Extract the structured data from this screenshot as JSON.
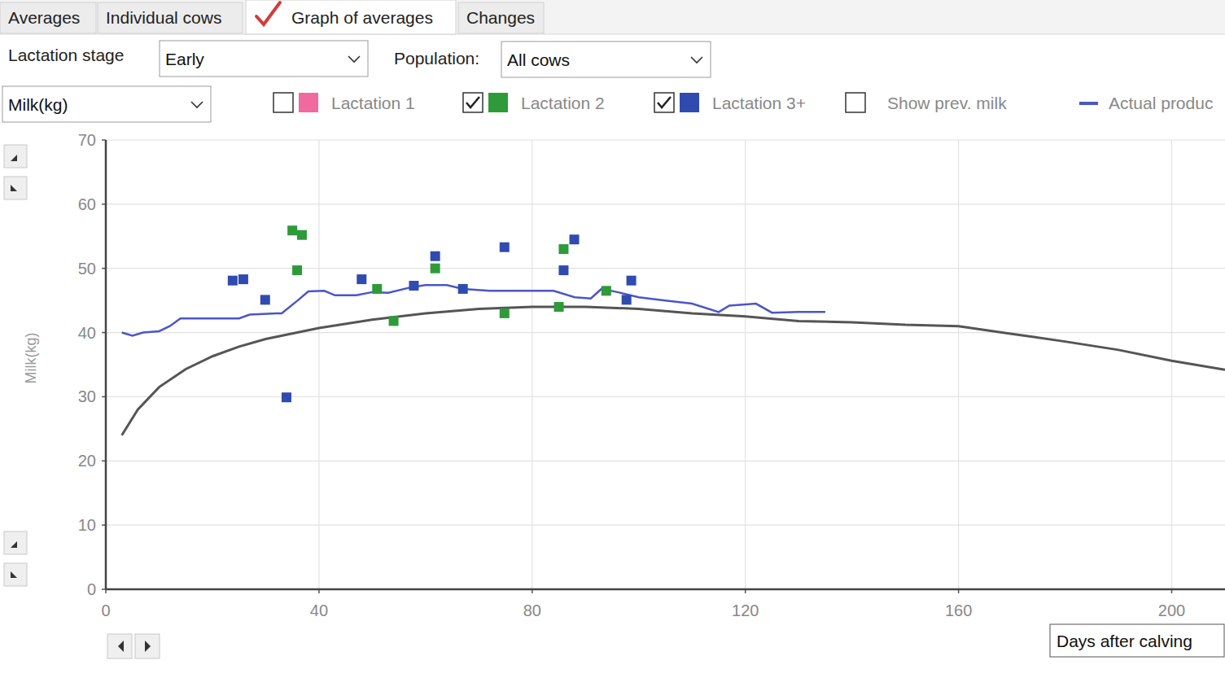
{
  "ui": {
    "tabs": [
      "Averages",
      "Individual cows",
      "Graph of averages",
      "Changes"
    ],
    "selected_tab": 2,
    "lactation_stage_label": "Lactation stage",
    "lactation_stage": "Early",
    "population_label": "Population:",
    "population": "All cows",
    "measure": "Milk(kg)",
    "checked": [
      false,
      true,
      true
    ],
    "show_prev": {
      "label": "Show prev. milk",
      "checked": false
    },
    "x_selector": "Days after calving"
  },
  "chart_data": {
    "type": "scatter",
    "y_label": "Milk(kg)",
    "xlim": [
      0,
      210
    ],
    "ylim": [
      0,
      70
    ],
    "xticks": [
      0,
      40,
      80,
      120,
      160,
      200
    ],
    "yticks": [
      0,
      10,
      20,
      30,
      40,
      50,
      60,
      70
    ],
    "grid": true,
    "legend": "top",
    "series": [
      {
        "name": "Lactation 1",
        "color": "#f06aa0",
        "type": "scatter",
        "marker": "square",
        "x": [],
        "values": []
      },
      {
        "name": "Lactation 2",
        "color": "#2e9a3a",
        "type": "scatter",
        "marker": "square",
        "x": [
          35,
          36.8,
          35.9,
          50.9,
          54,
          61.8,
          74.8,
          85,
          85.9,
          93.9
        ],
        "values": [
          55.9,
          55.2,
          49.7,
          46.8,
          41.8,
          50,
          43,
          44,
          53,
          46.5
        ]
      },
      {
        "name": "Lactation 3+",
        "color": "#2f4bb0",
        "type": "scatter",
        "marker": "square",
        "x": [
          23.8,
          25.8,
          29.9,
          33.9,
          48,
          57.8,
          61.8,
          67,
          74.8,
          85.9,
          87.9,
          97.7,
          98.6
        ],
        "values": [
          48.1,
          48.3,
          45.1,
          29.9,
          48.3,
          47.3,
          51.9,
          46.8,
          53.3,
          49.7,
          54.5,
          45.1,
          48.1
        ]
      },
      {
        "name": "Actual produc",
        "color": "#4a56c8",
        "type": "line",
        "line_style": "solid",
        "x": [
          3,
          5,
          7,
          10,
          12,
          14,
          20,
          25,
          27,
          32,
          33,
          36,
          38,
          41,
          43,
          47,
          50,
          53,
          57,
          60,
          64,
          67,
          72,
          80,
          84,
          88,
          91,
          93,
          96,
          100,
          105,
          110,
          115,
          117,
          122,
          125,
          130,
          135
        ],
        "values": [
          40,
          39.5,
          40,
          40.2,
          41,
          42.2,
          42.2,
          42.2,
          42.8,
          43,
          43,
          45,
          46.4,
          46.5,
          45.8,
          45.8,
          46.3,
          46.2,
          47,
          47.4,
          47.4,
          46.8,
          46.5,
          46.5,
          46.5,
          45.5,
          45.3,
          46.8,
          46.3,
          45.5,
          45,
          44.5,
          43.2,
          44.2,
          44.5,
          43.1,
          43.2,
          43.2
        ]
      },
      {
        "color": "#555555",
        "type": "line",
        "line_style": "solid",
        "x": [
          3,
          6,
          10,
          15,
          20,
          25,
          30,
          40,
          50,
          60,
          70,
          80,
          90,
          100,
          110,
          120,
          130,
          140,
          150,
          160,
          170,
          180,
          190,
          200,
          210
        ],
        "values": [
          24,
          28,
          31.5,
          34.3,
          36.3,
          37.8,
          39,
          40.7,
          42,
          43,
          43.7,
          44,
          44,
          43.7,
          43,
          42.5,
          41.8,
          41.6,
          41.2,
          41,
          39.8,
          38.6,
          37.3,
          35.6,
          34.2
        ]
      }
    ]
  }
}
